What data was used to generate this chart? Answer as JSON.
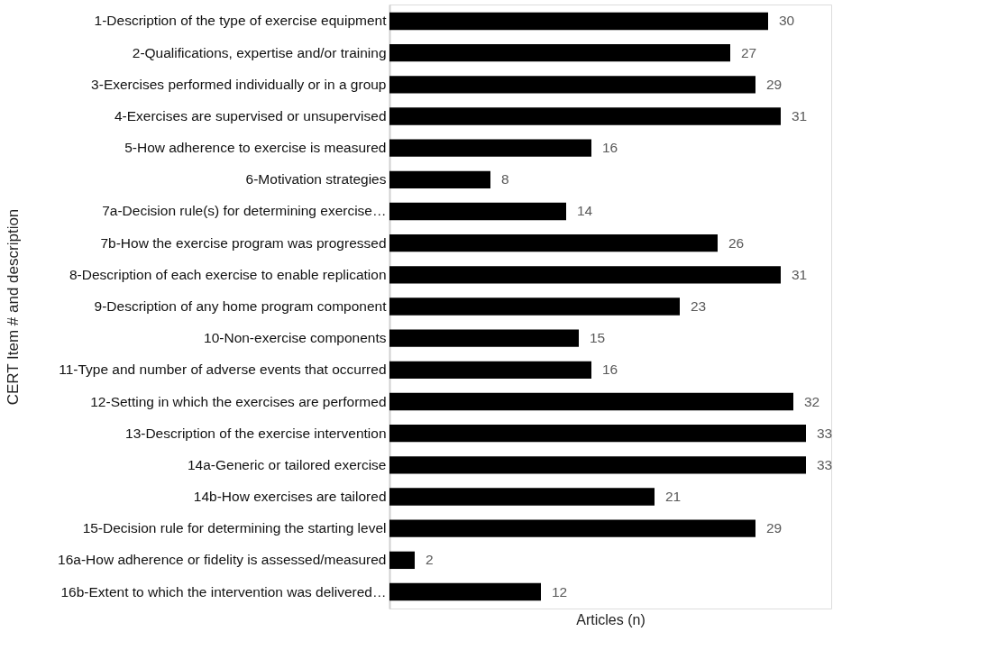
{
  "chart_data": {
    "type": "bar",
    "orientation": "horizontal",
    "categories": [
      "1-Description of the type of exercise equipment",
      "2-Qualifications, expertise and/or training",
      "3-Exercises performed individually or in a group",
      "4-Exercises are supervised or unsupervised",
      "5-How adherence to exercise is measured",
      "6-Motivation strategies",
      "7a-Decision rule(s) for determining exercise…",
      "7b-How the exercise program was progressed",
      "8-Description of each exercise to enable replication",
      "9-Description of any home program component",
      "10-Non-exercise components",
      "11-Type and number of adverse events that occurred",
      "12-Setting in which the exercises are performed",
      "13-Description of the exercise intervention",
      "14a-Generic or tailored exercise",
      "14b-How exercises are tailored",
      "15-Decision rule for determining the starting level",
      "16a-How adherence or fidelity is assessed/measured",
      "16b-Extent to which the intervention was delivered…"
    ],
    "values": [
      30,
      27,
      29,
      31,
      16,
      8,
      14,
      26,
      31,
      23,
      15,
      16,
      32,
      33,
      33,
      21,
      29,
      2,
      12
    ],
    "color": "#000000",
    "xlim": [
      0,
      35
    ],
    "xlabel": "Articles (n)",
    "ylabel": "CERT Item # and description",
    "data_labels": true,
    "grid": false,
    "tick_labels": "y"
  }
}
